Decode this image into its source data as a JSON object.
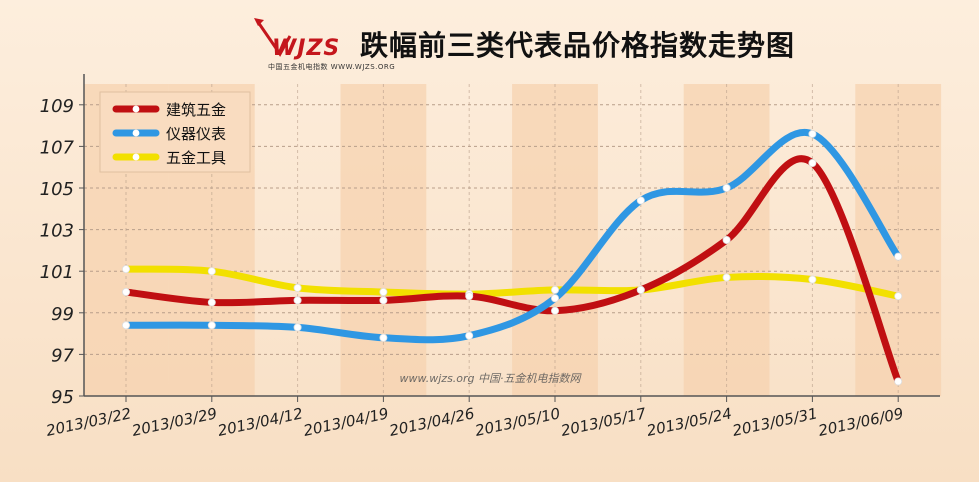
{
  "logo": {
    "text": "WJZS",
    "subtitle": "中国五金机电指数",
    "url": "WWW.WJZS.ORG"
  },
  "title": "跌幅前三类代表品价格指数走势图",
  "watermark": "www.wjzs.org 中国·五金机电指数网",
  "colors": {
    "background": "#fbe6cf",
    "band": "#f6d2ae",
    "grid": "#b89e8a",
    "axis": "#555555"
  },
  "chart_data": {
    "type": "line",
    "categories": [
      "2013/03/22",
      "2013/03/29",
      "2013/04/12",
      "2013/04/19",
      "2013/04/26",
      "2013/05/10",
      "2013/05/17",
      "2013/05/24",
      "2013/05/31",
      "2013/06/09"
    ],
    "ylim": [
      95,
      110
    ],
    "yticks": [
      95,
      97,
      99,
      101,
      103,
      105,
      107,
      109
    ],
    "grid": true,
    "legend_position": "top-left",
    "series": [
      {
        "name": "建筑五金",
        "color": "#c00f12",
        "values": [
          100.0,
          99.5,
          99.6,
          99.6,
          99.8,
          99.1,
          100.1,
          102.5,
          106.2,
          95.7
        ]
      },
      {
        "name": "仪器仪表",
        "color": "#2f97e3",
        "values": [
          98.4,
          98.4,
          98.3,
          97.8,
          97.9,
          99.7,
          104.4,
          105.0,
          107.6,
          101.7
        ]
      },
      {
        "name": "五金工具",
        "color": "#f2e000",
        "values": [
          101.1,
          101.0,
          100.2,
          100.0,
          99.9,
          100.1,
          100.1,
          100.7,
          100.6,
          99.8
        ]
      }
    ]
  }
}
